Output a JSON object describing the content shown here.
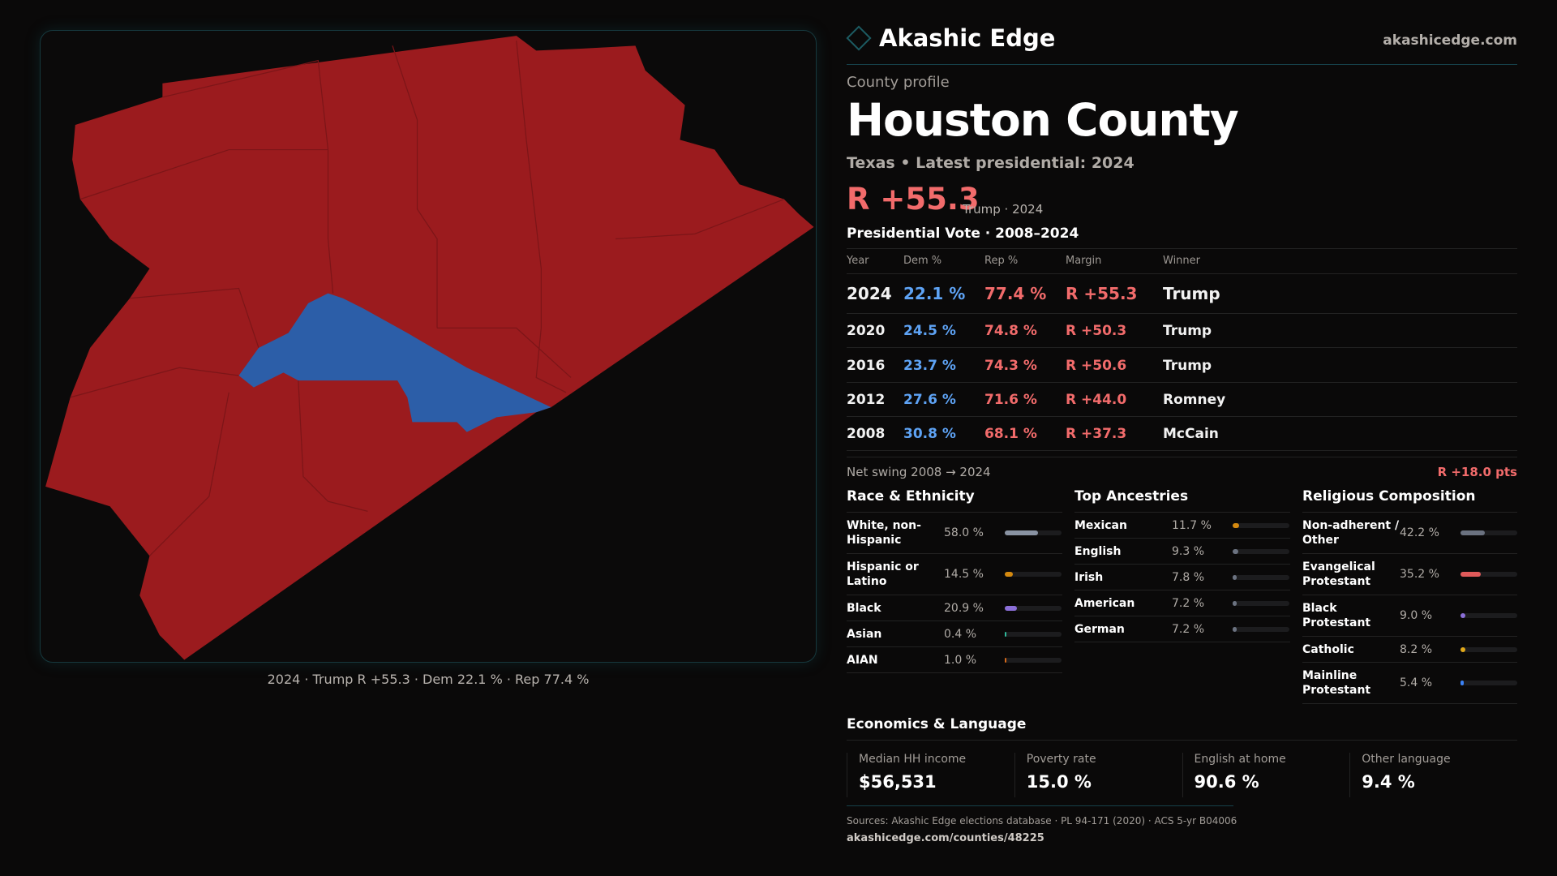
{
  "brand": {
    "name": "Akashic Edge",
    "site": "akashicedge.com"
  },
  "profile": {
    "eyebrow": "County profile",
    "title": "Houston County",
    "subtitle": "Texas • Latest presidential: 2024",
    "margin": "R +55.3",
    "margin_note": "Trump · 2024"
  },
  "map": {
    "caption": "2024 · Trump R +55.3 · Dem 22.1 % · Rep 77.4 %",
    "colors": {
      "rep": "#9b1b1e",
      "dem": "#2c5ea8"
    }
  },
  "vote": {
    "heading": "Presidential Vote · 2008–2024",
    "headers": [
      "Year",
      "Dem %",
      "Rep %",
      "Margin",
      "Winner"
    ],
    "rows": [
      {
        "year": "2024",
        "dem": "22.1 %",
        "rep": "77.4 %",
        "margin": "R +55.3",
        "winner": "Trump"
      },
      {
        "year": "2020",
        "dem": "24.5 %",
        "rep": "74.8 %",
        "margin": "R +50.3",
        "winner": "Trump"
      },
      {
        "year": "2016",
        "dem": "23.7 %",
        "rep": "74.3 %",
        "margin": "R +50.6",
        "winner": "Trump"
      },
      {
        "year": "2012",
        "dem": "27.6 %",
        "rep": "71.6 %",
        "margin": "R +44.0",
        "winner": "Romney"
      },
      {
        "year": "2008",
        "dem": "30.8 %",
        "rep": "68.1 %",
        "margin": "R +37.3",
        "winner": "McCain"
      }
    ],
    "swing_label": "Net swing 2008 → 2024",
    "swing_value": "R +18.0 pts"
  },
  "race": {
    "heading": "Race & Ethnicity",
    "items": [
      {
        "label": "White, non-Hispanic",
        "value": "58.0 %",
        "pct": 58.0,
        "color": "#8a93a3"
      },
      {
        "label": "Hispanic or Latino",
        "value": "14.5 %",
        "pct": 14.5,
        "color": "#d4890f"
      },
      {
        "label": "Black",
        "value": "20.9 %",
        "pct": 20.9,
        "color": "#8b6fd8"
      },
      {
        "label": "Asian",
        "value": "0.4 %",
        "pct": 0.4,
        "color": "#2fb89a"
      },
      {
        "label": "AIAN",
        "value": "1.0 %",
        "pct": 1.0,
        "color": "#d4691a"
      }
    ]
  },
  "ancestry": {
    "heading": "Top Ancestries",
    "items": [
      {
        "label": "Mexican",
        "value": "11.7 %",
        "pct": 11.7,
        "color": "#d4890f"
      },
      {
        "label": "English",
        "value": "9.3 %",
        "pct": 9.3,
        "color": "#6b7280"
      },
      {
        "label": "Irish",
        "value": "7.8 %",
        "pct": 7.8,
        "color": "#6b7280"
      },
      {
        "label": "American",
        "value": "7.2 %",
        "pct": 7.2,
        "color": "#6b7280"
      },
      {
        "label": "German",
        "value": "7.2 %",
        "pct": 7.2,
        "color": "#6b7280"
      }
    ]
  },
  "religion": {
    "heading": "Religious Composition",
    "items": [
      {
        "label": "Non-adherent / Other",
        "value": "42.2 %",
        "pct": 42.2,
        "color": "#6b7280"
      },
      {
        "label": "Evangelical Protestant",
        "value": "35.2 %",
        "pct": 35.2,
        "color": "#e05a5a"
      },
      {
        "label": "Black Protestant",
        "value": "9.0 %",
        "pct": 9.0,
        "color": "#8b6fd8"
      },
      {
        "label": "Catholic",
        "value": "8.2 %",
        "pct": 8.2,
        "color": "#e0a81a"
      },
      {
        "label": "Mainline Protestant",
        "value": "5.4 %",
        "pct": 5.4,
        "color": "#3b82f6"
      }
    ]
  },
  "economics": {
    "heading": "Economics & Language",
    "stats": [
      {
        "label": "Median HH income",
        "value": "$56,531"
      },
      {
        "label": "Poverty rate",
        "value": "15.0 %"
      },
      {
        "label": "English at home",
        "value": "90.6 %"
      },
      {
        "label": "Other language",
        "value": "9.4 %"
      }
    ]
  },
  "footer": {
    "sources": "Sources: Akashic Edge elections database · PL 94-171 (2020) · ACS 5-yr B04006",
    "url": "akashicedge.com/counties/48225"
  }
}
